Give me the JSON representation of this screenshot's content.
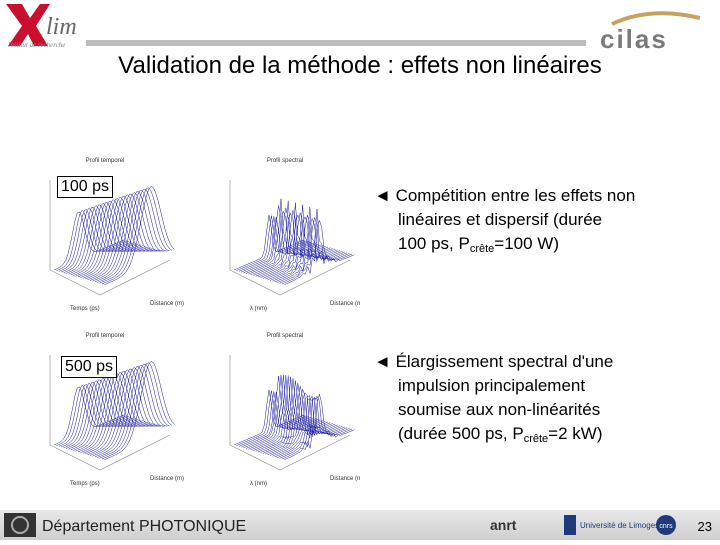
{
  "header": {
    "logo_left": "lim",
    "logo_left_subtitle": "Institut de recherche",
    "logo_right": "cilas"
  },
  "title": "Validation de la méthode : effets non linéaires",
  "rows": [
    {
      "label": "100 ps",
      "plots": [
        {
          "title": "Profil temporel",
          "x_label": "Temps (ps)",
          "y_label": "Distance (m)"
        },
        {
          "title": "Profil spectral",
          "x_label": "λ (nm)",
          "y_label": "Distance (m)"
        }
      ],
      "bullet": {
        "marker": "◄",
        "lines": [
          "Compétition entre les effets non",
          "linéaires et dispersif (durée"
        ],
        "last": {
          "before": "100 ps, P",
          "sub": "crête",
          "after": "=100 W)"
        }
      }
    },
    {
      "label": "500 ps",
      "plots": [
        {
          "title": "Profil temporel",
          "x_label": "Temps (ps)",
          "y_label": "Distance (m)"
        },
        {
          "title": "Profil spectral",
          "x_label": "λ (nm)",
          "y_label": "Distance (m)"
        }
      ],
      "bullet": {
        "marker": "◄",
        "lines": [
          "Élargissement spectral d'une",
          "impulsion principalement",
          "soumise aux non-linéarités"
        ],
        "last": {
          "before": "(durée 500 ps, P",
          "sub": "crête",
          "after": "=2 kW)"
        }
      }
    }
  ],
  "footer": {
    "department": "Département PHOTONIQUE",
    "logos": [
      "anrt",
      "Université de Limoges",
      "cnrs"
    ],
    "page": "23"
  }
}
